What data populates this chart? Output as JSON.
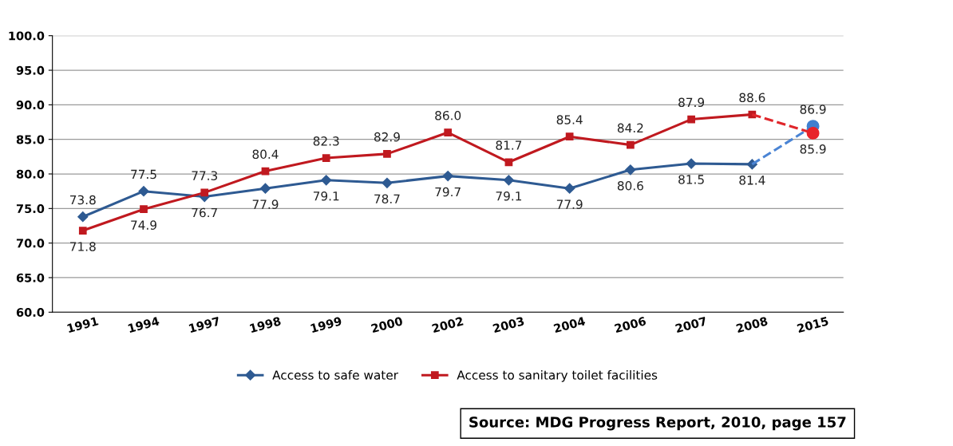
{
  "chart_data": {
    "type": "line",
    "categories": [
      "1991",
      "1994",
      "1997",
      "1998",
      "1999",
      "2000",
      "2002",
      "2003",
      "2004",
      "2006",
      "2007",
      "2008",
      "2015"
    ],
    "series": [
      {
        "name": "Access to safe water",
        "color": "#2e5a92",
        "marker": "diamond",
        "line_style": "solid",
        "values": [
          73.8,
          77.5,
          76.7,
          77.9,
          79.1,
          78.7,
          79.7,
          79.1,
          77.9,
          80.6,
          81.5,
          81.4,
          null
        ],
        "value_labels": [
          "73.8",
          "77.5",
          "76.7",
          "77.9",
          "79.1",
          "78.7",
          "79.7",
          "79.1",
          "77.9",
          "80.6",
          "81.5",
          "81.4",
          null
        ]
      },
      {
        "name": "Access to sanitary toilet facilities",
        "color": "#c0191f",
        "marker": "square",
        "line_style": "solid",
        "values": [
          71.8,
          74.9,
          77.3,
          80.4,
          82.3,
          82.9,
          86.0,
          81.7,
          85.4,
          84.2,
          87.9,
          88.6,
          null
        ],
        "value_labels": [
          "71.8",
          "74.9",
          "77.3",
          "80.4",
          "82.3",
          "82.9",
          "86.0",
          "81.7",
          "85.4",
          "84.2",
          "87.9",
          "88.6",
          null
        ]
      },
      {
        "color": "#4a84d4",
        "marker": "none",
        "line_style": "dashed",
        "values": [
          null,
          null,
          null,
          null,
          null,
          null,
          null,
          null,
          null,
          null,
          null,
          81.4,
          86.9
        ]
      },
      {
        "color": "#e0262b",
        "marker": "none",
        "line_style": "dashed",
        "values": [
          null,
          null,
          null,
          null,
          null,
          null,
          null,
          null,
          null,
          null,
          null,
          88.6,
          85.9
        ]
      },
      {
        "type": "scatter",
        "color": "#3f7fd0",
        "marker": "circle",
        "values": [
          null,
          null,
          null,
          null,
          null,
          null,
          null,
          null,
          null,
          null,
          null,
          null,
          86.9
        ],
        "value_labels": [
          null,
          null,
          null,
          null,
          null,
          null,
          null,
          null,
          null,
          null,
          null,
          null,
          "86.9"
        ]
      },
      {
        "type": "scatter",
        "color": "#e8232a",
        "marker": "circle",
        "values": [
          null,
          null,
          null,
          null,
          null,
          null,
          null,
          null,
          null,
          null,
          null,
          null,
          85.9
        ],
        "value_labels": [
          null,
          null,
          null,
          null,
          null,
          null,
          null,
          null,
          null,
          null,
          null,
          null,
          "85.9"
        ]
      }
    ],
    "ylim": [
      60,
      100
    ],
    "yticks": [
      {
        "value": 60,
        "label": "60.0"
      },
      {
        "value": 65,
        "label": "65.0"
      },
      {
        "value": 70,
        "label": "70.0"
      },
      {
        "value": 75,
        "label": "75.0"
      },
      {
        "value": 80,
        "label": "80.0"
      },
      {
        "value": 85,
        "label": "85.0"
      },
      {
        "value": 90,
        "label": "90.0"
      },
      {
        "value": 95,
        "label": "95.0"
      },
      {
        "value": 100,
        "label": "100.0"
      }
    ],
    "grid": "y",
    "legend": "bottom",
    "annotations": [
      "Source: MDG Progress Report, 2010, page 157"
    ]
  }
}
